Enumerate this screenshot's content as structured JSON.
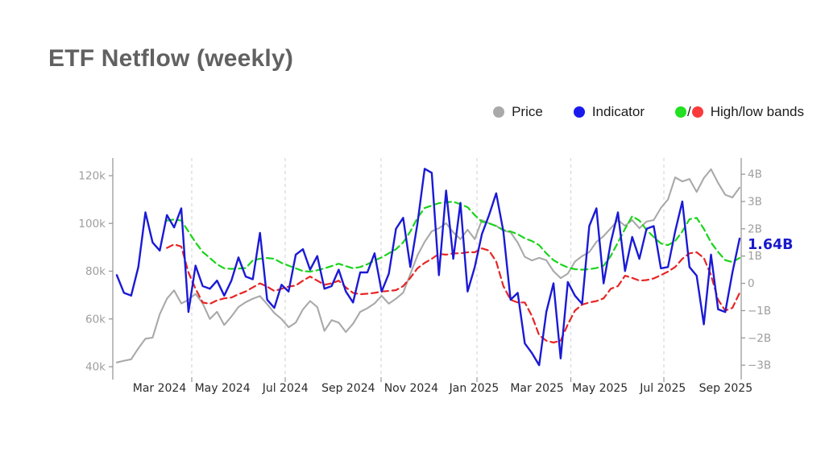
{
  "title": "ETF Netflow (weekly)",
  "legend": {
    "items": [
      {
        "label": "Price",
        "color": "#a9a9a9"
      },
      {
        "label": "Indicator",
        "color": "#1a1aee"
      },
      {
        "label": "High/low bands",
        "high_color": "#22e022",
        "low_color": "#fb3b3b",
        "separator": "/"
      }
    ]
  },
  "chart_data": {
    "type": "line",
    "title": "ETF Netflow (weekly)",
    "x_range": [
      "Jan 2024",
      "Sep 2025"
    ],
    "x_tick_labels": [
      "Mar 2024",
      "May 2024",
      "Jul 2024",
      "Sep 2024",
      "Nov 2024",
      "Jan 2025",
      "Mar 2025",
      "May 2025",
      "Jul 2025",
      "Sep 2025"
    ],
    "grid": "vertical-dashed-quarterly",
    "legend_position": "top-right",
    "axes": {
      "left": {
        "name": "price",
        "ticks": [
          40,
          60,
          80,
          100,
          120
        ],
        "tick_labels": [
          "40k",
          "60k",
          "80k",
          "100k",
          "120k"
        ],
        "range": [
          35.5,
          127.5
        ]
      },
      "right": {
        "name": "netflow",
        "ticks": [
          -3,
          -2,
          -1,
          0,
          1,
          2,
          3,
          4
        ],
        "tick_labels": [
          "−3B",
          "−2B",
          "−1B",
          "0",
          "1B",
          "2B",
          "3B",
          "4B"
        ],
        "range": [
          -3.45,
          4.6
        ]
      }
    },
    "annotation": {
      "text": "1.64B",
      "value": 1.64,
      "color": "#1a1acc"
    },
    "series": [
      {
        "name": "Price",
        "axis": "left",
        "style": "solid",
        "color": "#a9a9a9",
        "width": 2.1,
        "unit": "k",
        "values": [
          41.8,
          42.5,
          43.1,
          47.7,
          51.7,
          52.2,
          62.0,
          68.5,
          72.0,
          66.5,
          68.0,
          70.5,
          66.5,
          60.0,
          63.0,
          57.5,
          61.0,
          65.0,
          67.0,
          68.5,
          69.6,
          66.2,
          62.5,
          60.0,
          56.5,
          58.5,
          64.0,
          67.5,
          65.0,
          55.0,
          59.5,
          58.5,
          54.5,
          58.0,
          63.0,
          64.5,
          66.5,
          69.7,
          66.4,
          68.5,
          71.0,
          78.8,
          86.6,
          92.3,
          96.7,
          98.0,
          100.1,
          96.3,
          93.4,
          97.4,
          93.4,
          101.4,
          100.1,
          99.0,
          97.0,
          96.3,
          92.0,
          86.0,
          84.5,
          85.6,
          84.6,
          80.0,
          77.1,
          79.0,
          84.0,
          86.3,
          88.0,
          92.3,
          94.7,
          98.0,
          101.4,
          99.0,
          101.4,
          98.0,
          100.8,
          101.4,
          106.5,
          110.0,
          119.3,
          117.6,
          118.6,
          113.2,
          119.0,
          122.7,
          117.0,
          112.0,
          110.9,
          115.0
        ]
      },
      {
        "name": "Indicator",
        "axis": "right",
        "style": "solid",
        "color": "#1a1ad6",
        "width": 2.4,
        "unit": "B",
        "values": [
          0.3,
          -0.35,
          -0.45,
          0.6,
          2.6,
          1.5,
          1.2,
          2.5,
          2.05,
          2.75,
          -1.05,
          0.65,
          -0.1,
          -0.2,
          0.1,
          -0.45,
          0.1,
          0.95,
          0.25,
          0.15,
          1.85,
          -0.6,
          -0.9,
          -0.05,
          -0.3,
          1.05,
          1.25,
          0.5,
          1.0,
          -0.2,
          -0.1,
          0.5,
          -0.3,
          -0.7,
          0.4,
          0.4,
          1.1,
          -0.3,
          0.35,
          2.0,
          2.4,
          0.6,
          2.2,
          4.2,
          4.05,
          0.3,
          3.4,
          0.9,
          2.95,
          -0.3,
          0.6,
          1.8,
          2.5,
          3.3,
          1.9,
          -0.6,
          -0.35,
          -2.2,
          -2.56,
          -3.0,
          -1.05,
          0.0,
          -2.75,
          0.05,
          -0.45,
          -0.75,
          2.1,
          2.75,
          0.0,
          1.5,
          2.6,
          0.45,
          1.7,
          0.9,
          2.0,
          2.1,
          0.55,
          0.6,
          1.9,
          3.0,
          0.6,
          0.28,
          -1.5,
          1.05,
          -0.95,
          -1.05,
          0.4,
          1.64
        ]
      },
      {
        "name": "High band",
        "axis": "right",
        "style": "dashed",
        "color": "#1bd41b",
        "width": 2.2,
        "unit": "B",
        "values": [
          null,
          null,
          null,
          null,
          null,
          null,
          null,
          2.3,
          2.34,
          2.3,
          1.9,
          1.5,
          1.15,
          0.93,
          0.7,
          0.55,
          0.53,
          0.54,
          0.56,
          0.84,
          0.9,
          0.93,
          0.9,
          0.75,
          0.65,
          0.55,
          0.45,
          0.43,
          0.48,
          0.55,
          0.63,
          0.72,
          0.63,
          0.55,
          0.6,
          0.7,
          0.84,
          0.95,
          1.1,
          1.25,
          1.5,
          1.9,
          2.4,
          2.76,
          2.85,
          2.94,
          2.97,
          2.99,
          2.9,
          2.79,
          2.5,
          2.26,
          2.2,
          2.1,
          1.95,
          1.9,
          1.8,
          1.65,
          1.55,
          1.4,
          1.1,
          0.85,
          0.7,
          0.58,
          0.52,
          0.5,
          0.52,
          0.56,
          0.65,
          1.0,
          1.5,
          2.0,
          2.46,
          2.3,
          1.96,
          1.7,
          1.46,
          1.4,
          1.55,
          1.9,
          2.35,
          2.4,
          2.0,
          1.5,
          1.15,
          0.85,
          0.78,
          0.93
        ]
      },
      {
        "name": "Low band",
        "axis": "right",
        "style": "dashed",
        "color": "#e82525",
        "width": 2.2,
        "unit": "B",
        "values": [
          null,
          null,
          null,
          null,
          null,
          null,
          null,
          1.3,
          1.43,
          1.35,
          0.4,
          -0.2,
          -0.7,
          -0.75,
          -0.62,
          -0.55,
          -0.52,
          -0.4,
          -0.3,
          -0.15,
          0.0,
          -0.12,
          -0.28,
          -0.2,
          -0.12,
          -0.08,
          0.1,
          0.25,
          0.1,
          -0.05,
          0.0,
          0.1,
          -0.15,
          -0.35,
          -0.4,
          -0.38,
          -0.35,
          -0.3,
          -0.28,
          -0.25,
          -0.1,
          0.2,
          0.55,
          0.75,
          0.9,
          1.08,
          1.05,
          1.1,
          1.1,
          1.14,
          1.14,
          1.28,
          1.2,
          0.8,
          -0.1,
          -0.6,
          -0.7,
          -0.7,
          -1.2,
          -1.9,
          -2.1,
          -2.17,
          -2.1,
          -1.5,
          -1.0,
          -0.78,
          -0.7,
          -0.65,
          -0.55,
          -0.2,
          -0.1,
          0.28,
          0.2,
          0.1,
          0.12,
          0.18,
          0.3,
          0.43,
          0.6,
          0.9,
          1.1,
          1.14,
          0.93,
          0.3,
          -0.6,
          -1.0,
          -0.9,
          -0.35
        ]
      }
    ]
  },
  "colors": {
    "axis": "#9a9a9a",
    "grid": "#d7d7d7",
    "y_tick_label": "#9e9e9e",
    "x_tick_label": "#2b2b2b",
    "title": "#616161"
  }
}
